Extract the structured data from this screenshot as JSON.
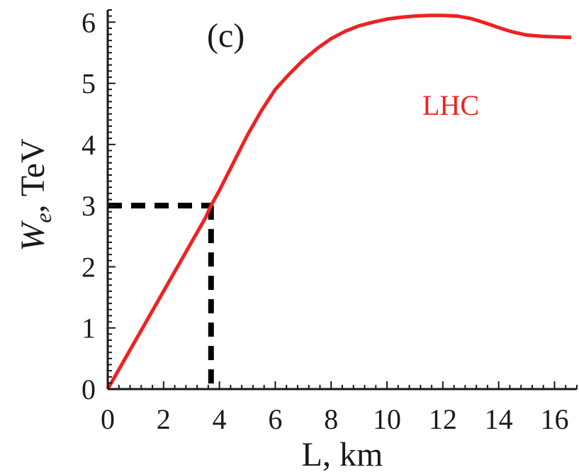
{
  "chart_data": {
    "type": "line",
    "panel_label": "(c)",
    "xlabel": "L, km",
    "ylabel_main": "W",
    "ylabel_sub": "e",
    "ylabel_rest": ", TeV",
    "xlim": [
      0,
      16.8
    ],
    "ylim": [
      0,
      6.2
    ],
    "x_ticks": [
      0,
      2,
      4,
      6,
      8,
      10,
      12,
      14,
      16
    ],
    "y_ticks": [
      0,
      1,
      2,
      3,
      4,
      5,
      6
    ],
    "x_tick_labels": [
      "0",
      "2",
      "4",
      "6",
      "8",
      "10",
      "12",
      "14",
      "16"
    ],
    "y_tick_labels": [
      "0",
      "1",
      "2",
      "3",
      "4",
      "5",
      "6"
    ],
    "grid": false,
    "series": [
      {
        "name": "LHC",
        "color": "#ee2222",
        "x": [
          0,
          0.5,
          1,
          1.5,
          2,
          2.5,
          3,
          3.5,
          3.7,
          4,
          4.5,
          5,
          5.5,
          6,
          6.5,
          7,
          7.5,
          8,
          8.5,
          9,
          9.5,
          10,
          10.5,
          11,
          11.5,
          12,
          12.5,
          13,
          13.5,
          14,
          14.5,
          15,
          15.5,
          16,
          16.6
        ],
        "y": [
          0,
          0.4,
          0.8,
          1.2,
          1.6,
          2.0,
          2.4,
          2.8,
          3.0,
          3.25,
          3.7,
          4.15,
          4.55,
          4.9,
          5.15,
          5.38,
          5.57,
          5.73,
          5.85,
          5.94,
          6.0,
          6.05,
          6.08,
          6.1,
          6.11,
          6.11,
          6.1,
          6.06,
          5.99,
          5.91,
          5.84,
          5.79,
          5.77,
          5.76,
          5.75
        ]
      }
    ],
    "reference_point": {
      "x": 3.7,
      "y": 3.0,
      "color": "#000000"
    }
  }
}
